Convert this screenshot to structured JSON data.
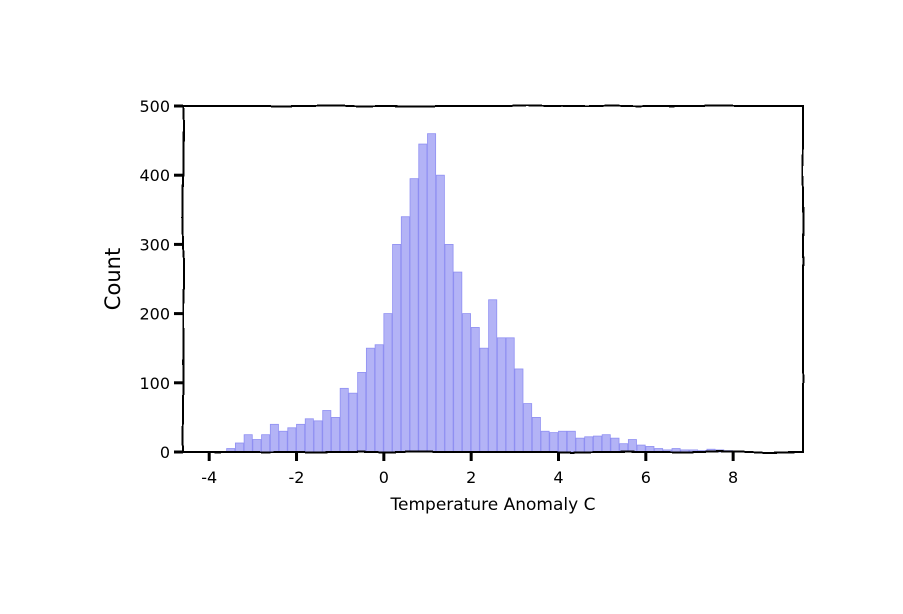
{
  "chart_data": {
    "type": "bar",
    "title": "",
    "xlabel": "Temperature Anomaly C",
    "ylabel": "Count",
    "xlim": [
      -4.6,
      9.6
    ],
    "ylim": [
      0,
      500
    ],
    "xticks": [
      -4,
      -2,
      0,
      2,
      4,
      6,
      8
    ],
    "yticks": [
      0,
      100,
      200,
      300,
      400,
      500
    ],
    "grid": false,
    "legend": "none",
    "bar_color": "#a6a6f5",
    "bin_width": 0.2,
    "bins_start": [
      -3.6,
      -3.4,
      -3.2,
      -3.0,
      -2.8,
      -2.6,
      -2.4,
      -2.2,
      -2.0,
      -1.8,
      -1.6,
      -1.4,
      -1.2,
      -1.0,
      -0.8,
      -0.6,
      -0.4,
      -0.2,
      0.0,
      0.2,
      0.4,
      0.6,
      0.8,
      1.0,
      1.2,
      1.4,
      1.6,
      1.8,
      2.0,
      2.2,
      2.4,
      2.6,
      2.8,
      3.0,
      3.2,
      3.4,
      3.6,
      3.8,
      4.0,
      4.2,
      4.4,
      4.6,
      4.8,
      5.0,
      5.2,
      5.4,
      5.6,
      5.8,
      6.0,
      6.2,
      6.4,
      6.6,
      6.8,
      7.0,
      7.2,
      7.4,
      7.6,
      7.8
    ],
    "values": [
      5,
      13,
      25,
      18,
      25,
      40,
      30,
      35,
      40,
      48,
      45,
      60,
      50,
      92,
      85,
      115,
      150,
      155,
      200,
      300,
      340,
      395,
      445,
      460,
      400,
      300,
      260,
      200,
      180,
      150,
      220,
      165,
      165,
      120,
      70,
      50,
      30,
      28,
      30,
      30,
      20,
      22,
      23,
      25,
      20,
      12,
      18,
      10,
      8,
      5,
      3,
      5,
      3,
      3,
      2,
      4,
      3,
      2
    ]
  }
}
